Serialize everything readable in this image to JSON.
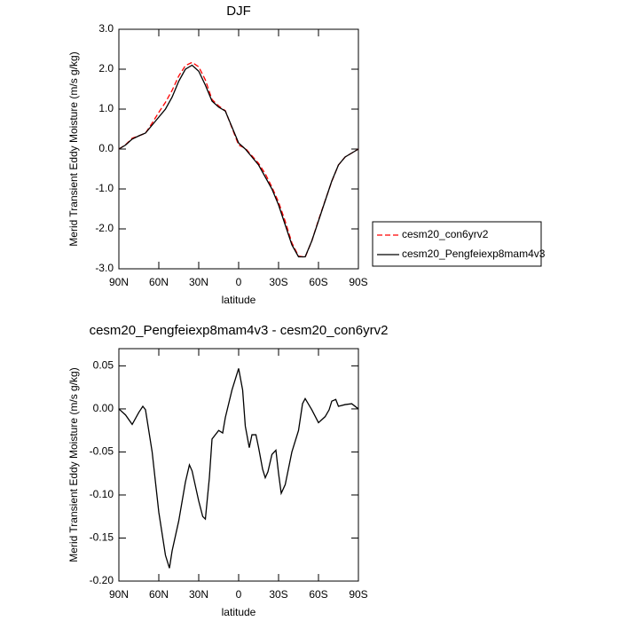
{
  "chart_data": [
    {
      "type": "line",
      "title": "DJF",
      "x_label": "latitude",
      "y_label": "Merid Transient Eddy Moisture (m/s g/kg)",
      "x": [
        90,
        85,
        80,
        75,
        70,
        65,
        60,
        55,
        50,
        45,
        40,
        35,
        30,
        25,
        20,
        15,
        10,
        5,
        0,
        -5,
        -10,
        -15,
        -20,
        -25,
        -30,
        -35,
        -40,
        -45,
        -50,
        -55,
        -60,
        -65,
        -70,
        -75,
        -80,
        -85,
        -90
      ],
      "series": [
        {
          "name": "cesm20_con6yrv2",
          "color": "#ff0000",
          "dashed": true,
          "values": [
            0,
            0.107,
            0.27,
            0.33,
            0.4,
            0.65,
            0.92,
            1.17,
            1.47,
            1.83,
            2.09,
            2.17,
            2.06,
            1.73,
            1.24,
            1.08,
            0.96,
            0.53,
            0.1,
            0.02,
            -0.17,
            -0.36,
            -0.62,
            -0.95,
            -1.33,
            -1.81,
            -2.35,
            -2.68,
            -2.71,
            -2.3,
            -1.78,
            -1.29,
            -0.81,
            -0.4,
            -0.2,
            -0.1,
            0
          ]
        },
        {
          "name": "cesm20_Pengfeiexp8mam4v3",
          "color": "#000000",
          "dashed": false,
          "values": [
            0,
            0.1,
            0.25,
            0.33,
            0.4,
            0.6,
            0.8,
            1.0,
            1.3,
            1.7,
            2.0,
            2.1,
            1.95,
            1.6,
            1.2,
            1.05,
            0.95,
            0.55,
            0.15,
            0.0,
            -0.2,
            -0.4,
            -0.7,
            -1.0,
            -1.4,
            -1.9,
            -2.4,
            -2.7,
            -2.7,
            -2.3,
            -1.8,
            -1.3,
            -0.8,
            -0.4,
            -0.2,
            -0.1,
            0
          ]
        }
      ],
      "xlim": [
        90,
        -90
      ],
      "xticks": [
        {
          "value": 90,
          "label": "90N"
        },
        {
          "value": 60,
          "label": "60N"
        },
        {
          "value": 30,
          "label": "30N"
        },
        0,
        {
          "value": -30,
          "label": "30S"
        },
        {
          "value": -60,
          "label": "60S"
        },
        {
          "value": -90,
          "label": "90S"
        }
      ],
      "ylim": [
        -3,
        3
      ],
      "yticks": [
        {
          "value": -3,
          "label": "-3.0"
        },
        {
          "value": -2,
          "label": "-2.0"
        },
        {
          "value": -1,
          "label": "-1.0"
        },
        {
          "value": 0,
          "label": "0.0"
        },
        {
          "value": 1,
          "label": "1.0"
        },
        {
          "value": 2,
          "label": "2.0"
        },
        {
          "value": 3,
          "label": "3.0"
        }
      ],
      "legend": "right"
    },
    {
      "type": "line",
      "title": "cesm20_Pengfeiexp8mam4v3 - cesm20_con6yrv2",
      "x_label": "latitude",
      "y_label": "Merid Transient Eddy Moisture (m/s g/kg)",
      "x": [
        90,
        85,
        80,
        75,
        72,
        70,
        65,
        60,
        55,
        52,
        50,
        45,
        40,
        37,
        35,
        30,
        27,
        25,
        22,
        20,
        15,
        12,
        10,
        5,
        0,
        -3,
        -5,
        -8,
        -10,
        -13,
        -15,
        -18,
        -20,
        -22,
        -25,
        -28,
        -30,
        -32,
        -35,
        -40,
        -45,
        -48,
        -50,
        -55,
        -60,
        -65,
        -68,
        -70,
        -73,
        -75,
        -80,
        -85,
        -90
      ],
      "values": [
        0,
        -0.007,
        -0.018,
        -0.004,
        0.003,
        -0.001,
        -0.05,
        -0.12,
        -0.17,
        -0.185,
        -0.165,
        -0.13,
        -0.085,
        -0.065,
        -0.072,
        -0.107,
        -0.125,
        -0.128,
        -0.08,
        -0.035,
        -0.025,
        -0.028,
        -0.01,
        0.022,
        0.047,
        0.022,
        -0.02,
        -0.045,
        -0.03,
        -0.03,
        -0.045,
        -0.07,
        -0.08,
        -0.073,
        -0.053,
        -0.048,
        -0.075,
        -0.098,
        -0.088,
        -0.05,
        -0.025,
        0.006,
        0.012,
        -0.001,
        -0.016,
        -0.009,
        -0.001,
        0.009,
        0.011,
        0.003,
        0.005,
        0.006,
        0
      ],
      "color": "#000000",
      "xlim": [
        90,
        -90
      ],
      "xticks": [
        {
          "value": 90,
          "label": "90N"
        },
        {
          "value": 60,
          "label": "60N"
        },
        {
          "value": 30,
          "label": "30N"
        },
        0,
        {
          "value": -30,
          "label": "30S"
        },
        {
          "value": -60,
          "label": "60S"
        },
        {
          "value": -90,
          "label": "90S"
        }
      ],
      "ylim": [
        -0.2,
        0.07
      ],
      "yticks": [
        {
          "value": -0.2,
          "label": "-0.20"
        },
        {
          "value": -0.15,
          "label": "-0.15"
        },
        {
          "value": -0.1,
          "label": "-0.10"
        },
        -0.05,
        {
          "value": 0,
          "label": "0.00"
        },
        0.05
      ]
    }
  ]
}
